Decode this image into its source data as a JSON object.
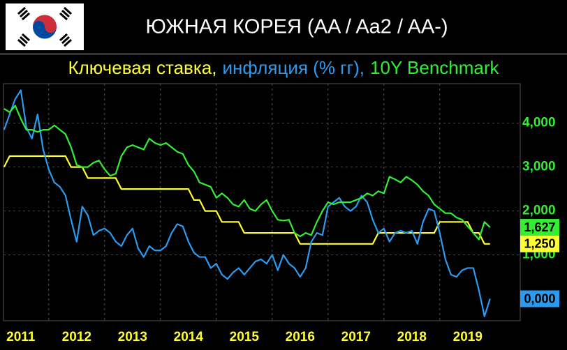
{
  "chart_data": {
    "type": "line",
    "title": "ЮЖНАЯ КОРЕЯ (AA / Aa2 / AA-)",
    "x": [
      2011.2,
      2011.3,
      2011.4,
      2011.5,
      2011.6,
      2011.7,
      2011.8,
      2011.9,
      2012.0,
      2012.1,
      2012.2,
      2012.3,
      2012.4,
      2012.5,
      2012.6,
      2012.7,
      2012.8,
      2012.9,
      2013.0,
      2013.1,
      2013.2,
      2013.3,
      2013.4,
      2013.5,
      2013.6,
      2013.7,
      2013.8,
      2013.9,
      2014.0,
      2014.1,
      2014.2,
      2014.3,
      2014.4,
      2014.5,
      2014.6,
      2014.7,
      2014.8,
      2014.9,
      2015.0,
      2015.1,
      2015.2,
      2015.3,
      2015.4,
      2015.5,
      2015.6,
      2015.7,
      2015.8,
      2015.9,
      2016.0,
      2016.1,
      2016.2,
      2016.3,
      2016.4,
      2016.5,
      2016.6,
      2016.7,
      2016.8,
      2016.9,
      2017.0,
      2017.1,
      2017.2,
      2017.3,
      2017.4,
      2017.5,
      2017.6,
      2017.7,
      2017.8,
      2017.9,
      2018.0,
      2018.1,
      2018.2,
      2018.3,
      2018.4,
      2018.5,
      2018.6,
      2018.7,
      2018.8,
      2018.9,
      2019.0,
      2019.1,
      2019.2,
      2019.3,
      2019.4,
      2019.5,
      2019.6,
      2019.7,
      2019.8,
      2019.9
    ],
    "series": [
      {
        "name": "Ключевая ставка,",
        "color": "#ffff33",
        "values": [
          3.0,
          3.25,
          3.25,
          3.25,
          3.25,
          3.25,
          3.25,
          3.25,
          3.25,
          3.25,
          3.25,
          3.25,
          3.0,
          3.0,
          3.0,
          2.75,
          2.75,
          2.75,
          2.75,
          2.75,
          2.75,
          2.5,
          2.5,
          2.5,
          2.5,
          2.5,
          2.5,
          2.5,
          2.5,
          2.5,
          2.5,
          2.5,
          2.5,
          2.5,
          2.25,
          2.25,
          2.0,
          2.0,
          2.0,
          1.75,
          1.75,
          1.75,
          1.75,
          1.5,
          1.5,
          1.5,
          1.5,
          1.5,
          1.5,
          1.5,
          1.5,
          1.5,
          1.5,
          1.25,
          1.25,
          1.25,
          1.25,
          1.25,
          1.25,
          1.25,
          1.25,
          1.25,
          1.25,
          1.25,
          1.25,
          1.25,
          1.25,
          1.5,
          1.5,
          1.5,
          1.5,
          1.5,
          1.5,
          1.5,
          1.5,
          1.5,
          1.5,
          1.5,
          1.75,
          1.75,
          1.75,
          1.75,
          1.75,
          1.75,
          1.5,
          1.5,
          1.25,
          1.25
        ],
        "value_labels": [
          null,
          null,
          null,
          null,
          null,
          null,
          null,
          null,
          null,
          null,
          null,
          null,
          null,
          null,
          null,
          null,
          null,
          null,
          null,
          null,
          null,
          null,
          null,
          null,
          null,
          null,
          null,
          null,
          null,
          null,
          null,
          null,
          null,
          null,
          null,
          null,
          null,
          null,
          null,
          null,
          null,
          null,
          null,
          null,
          null,
          null,
          null,
          null,
          null,
          null,
          null,
          null,
          null,
          null,
          null,
          null,
          null,
          null,
          null,
          null,
          null,
          null,
          null,
          null,
          null,
          null,
          null,
          null,
          null,
          null,
          null,
          null,
          null,
          null,
          null,
          null,
          null,
          null,
          null,
          null,
          null,
          null,
          null,
          null,
          null,
          null,
          null,
          "1,250"
        ]
      },
      {
        "name": "инфляция (% гг),",
        "color": "#2b9bf0",
        "values": [
          3.85,
          4.2,
          4.55,
          4.75,
          3.9,
          3.65,
          4.2,
          3.4,
          2.95,
          2.65,
          2.55,
          2.35,
          1.8,
          1.3,
          2.1,
          1.9,
          1.45,
          1.55,
          1.6,
          1.5,
          1.3,
          1.2,
          1.45,
          1.6,
          1.15,
          0.95,
          1.2,
          1.1,
          1.1,
          1.2,
          1.5,
          1.7,
          1.65,
          1.3,
          1.05,
          0.95,
          0.95,
          0.7,
          0.8,
          0.55,
          0.45,
          0.6,
          0.7,
          0.55,
          0.7,
          0.85,
          0.9,
          0.8,
          1.0,
          0.65,
          1.0,
          0.8,
          0.7,
          0.5,
          0.7,
          1.3,
          1.5,
          1.45,
          2.1,
          2.2,
          2.3,
          2.1,
          2.0,
          2.1,
          2.35,
          2.2,
          1.8,
          1.5,
          1.6,
          1.3,
          1.5,
          1.55,
          1.5,
          1.55,
          1.25,
          1.75,
          2.05,
          2.0,
          1.5,
          0.9,
          0.55,
          0.5,
          0.65,
          0.7,
          0.7,
          0.2,
          -0.4,
          0.0
        ],
        "value_labels": [
          null,
          null,
          null,
          null,
          null,
          null,
          null,
          null,
          null,
          null,
          null,
          null,
          null,
          null,
          null,
          null,
          null,
          null,
          null,
          null,
          null,
          null,
          null,
          null,
          null,
          null,
          null,
          null,
          null,
          null,
          null,
          null,
          null,
          null,
          null,
          null,
          null,
          null,
          null,
          null,
          null,
          null,
          null,
          null,
          null,
          null,
          null,
          null,
          null,
          null,
          null,
          null,
          null,
          null,
          null,
          null,
          null,
          null,
          null,
          null,
          null,
          null,
          null,
          null,
          null,
          null,
          null,
          null,
          null,
          null,
          null,
          null,
          null,
          null,
          null,
          null,
          null,
          null,
          null,
          null,
          null,
          null,
          null,
          null,
          null,
          null,
          null,
          "0,000"
        ]
      },
      {
        "name": "10Y Benchmark",
        "color": "#33ee33",
        "values": [
          4.33,
          4.25,
          4.4,
          4.1,
          3.85,
          3.85,
          3.8,
          3.85,
          3.85,
          3.95,
          3.85,
          3.75,
          3.45,
          3.05,
          3.0,
          3.0,
          3.1,
          3.15,
          2.95,
          2.8,
          2.85,
          3.25,
          3.45,
          3.5,
          3.45,
          3.4,
          3.65,
          3.55,
          3.5,
          3.55,
          3.45,
          3.35,
          3.3,
          3.05,
          2.9,
          2.65,
          2.6,
          2.55,
          2.3,
          2.4,
          2.3,
          2.15,
          2.1,
          2.25,
          2.05,
          2.0,
          2.15,
          2.25,
          2.0,
          1.8,
          1.78,
          1.8,
          1.5,
          1.42,
          1.5,
          1.45,
          1.75,
          2.0,
          2.2,
          2.15,
          2.2,
          2.2,
          2.2,
          2.25,
          2.3,
          2.4,
          2.35,
          2.45,
          2.4,
          2.78,
          2.72,
          2.65,
          2.78,
          2.7,
          2.6,
          2.45,
          2.35,
          2.15,
          2.05,
          1.95,
          1.95,
          1.85,
          1.8,
          1.65,
          1.5,
          1.35,
          1.75,
          1.627
        ],
        "value_labels": [
          null,
          null,
          null,
          null,
          null,
          null,
          null,
          null,
          null,
          null,
          null,
          null,
          null,
          null,
          null,
          null,
          null,
          null,
          null,
          null,
          null,
          null,
          null,
          null,
          null,
          null,
          null,
          null,
          null,
          null,
          null,
          null,
          null,
          null,
          null,
          null,
          null,
          null,
          null,
          null,
          null,
          null,
          null,
          null,
          null,
          null,
          null,
          null,
          null,
          null,
          null,
          null,
          null,
          null,
          null,
          null,
          null,
          null,
          null,
          null,
          null,
          null,
          null,
          null,
          null,
          null,
          null,
          null,
          null,
          null,
          null,
          null,
          null,
          null,
          null,
          null,
          null,
          null,
          null,
          null,
          null,
          null,
          null,
          null,
          null,
          null,
          null,
          "1,627"
        ]
      }
    ],
    "xlim": [
      2011.19,
      2020.44
    ],
    "xticks": [
      {
        "value": 2011,
        "label": "2011"
      },
      {
        "value": 2012,
        "label": "2012"
      },
      {
        "value": 2013,
        "label": "2013"
      },
      {
        "value": 2014,
        "label": "2014"
      },
      {
        "value": 2015,
        "label": "2015"
      },
      {
        "value": 2016,
        "label": "2016"
      },
      {
        "value": 2017,
        "label": "2017"
      },
      {
        "value": 2018,
        "label": "2018"
      },
      {
        "value": 2019,
        "label": "2019"
      }
    ],
    "ylim": [
      -0.5,
      4.9
    ],
    "yticks": [
      {
        "value": 1,
        "label": "1,000"
      },
      {
        "value": 2,
        "label": "2,000"
      },
      {
        "value": 3,
        "label": "3,000"
      },
      {
        "value": 4,
        "label": "4,000"
      }
    ],
    "grid": true
  }
}
